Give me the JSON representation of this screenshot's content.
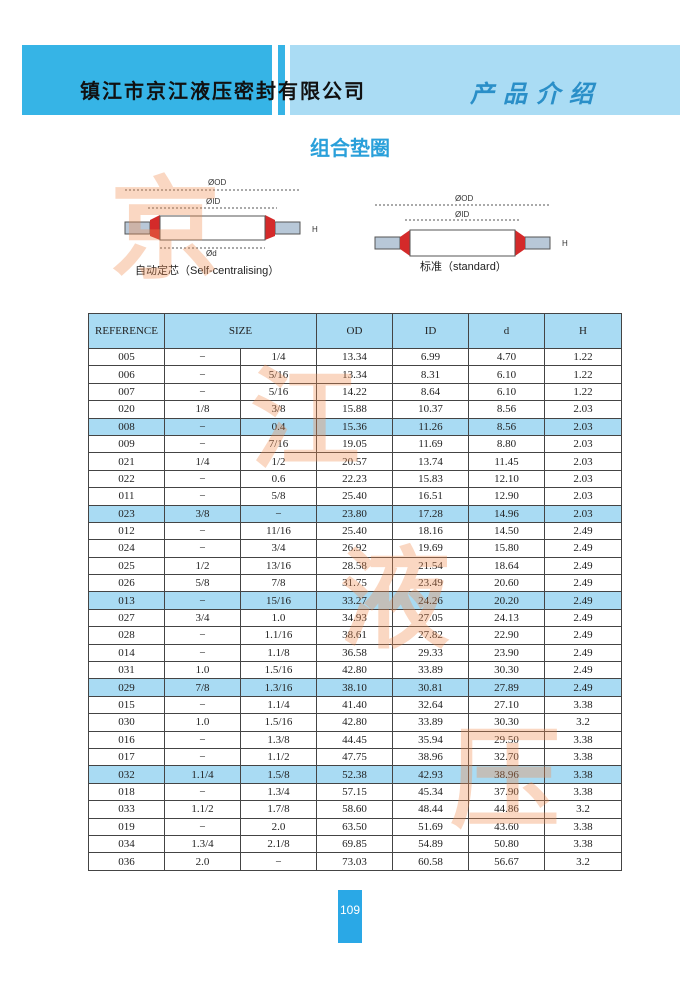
{
  "header": {
    "company": "镇江市京江液压密封有限公司",
    "section": "产品介绍"
  },
  "title": "组合垫圈",
  "watermark": [
    "京",
    "江",
    "液",
    "压"
  ],
  "diagrams": [
    {
      "od_label": "ØOD",
      "id_label": "ØID",
      "d_label": "Ød",
      "h_label": "H",
      "caption": "自动定芯（Self-centralising）"
    },
    {
      "od_label": "ØOD",
      "id_label": "ØID",
      "h_label": "H",
      "caption": "标准（standard）"
    }
  ],
  "table": {
    "header": [
      "REFERENCE",
      "SIZE",
      "OD",
      "ID",
      "d",
      "H"
    ],
    "highlighted_rows": [
      4,
      9,
      14,
      19,
      24
    ],
    "rows": [
      [
        "005",
        "−",
        "1/4",
        "13.34",
        "6.99",
        "4.70",
        "1.22"
      ],
      [
        "006",
        "−",
        "5/16",
        "13.34",
        "8.31",
        "6.10",
        "1.22"
      ],
      [
        "007",
        "−",
        "5/16",
        "14.22",
        "8.64",
        "6.10",
        "1.22"
      ],
      [
        "020",
        "1/8",
        "3/8",
        "15.88",
        "10.37",
        "8.56",
        "2.03"
      ],
      [
        "008",
        "−",
        "0.4",
        "15.36",
        "11.26",
        "8.56",
        "2.03"
      ],
      [
        "009",
        "−",
        "7/16",
        "19.05",
        "11.69",
        "8.80",
        "2.03"
      ],
      [
        "021",
        "1/4",
        "1/2",
        "20.57",
        "13.74",
        "11.45",
        "2.03"
      ],
      [
        "022",
        "−",
        "0.6",
        "22.23",
        "15.83",
        "12.10",
        "2.03"
      ],
      [
        "011",
        "−",
        "5/8",
        "25.40",
        "16.51",
        "12.90",
        "2.03"
      ],
      [
        "023",
        "3/8",
        "−",
        "23.80",
        "17.28",
        "14.96",
        "2.03"
      ],
      [
        "012",
        "−",
        "11/16",
        "25.40",
        "18.16",
        "14.50",
        "2.49"
      ],
      [
        "024",
        "−",
        "3/4",
        "26.92",
        "19.69",
        "15.80",
        "2.49"
      ],
      [
        "025",
        "1/2",
        "13/16",
        "28.58",
        "21.54",
        "18.64",
        "2.49"
      ],
      [
        "026",
        "5/8",
        "7/8",
        "31.75",
        "23.49",
        "20.60",
        "2.49"
      ],
      [
        "013",
        "−",
        "15/16",
        "33.27",
        "24.26",
        "20.20",
        "2.49"
      ],
      [
        "027",
        "3/4",
        "1.0",
        "34.93",
        "27.05",
        "24.13",
        "2.49"
      ],
      [
        "028",
        "−",
        "1.1/16",
        "38.61",
        "27.82",
        "22.90",
        "2.49"
      ],
      [
        "014",
        "−",
        "1.1/8",
        "36.58",
        "29.33",
        "23.90",
        "2.49"
      ],
      [
        "031",
        "1.0",
        "1.5/16",
        "42.80",
        "33.89",
        "30.30",
        "2.49"
      ],
      [
        "029",
        "7/8",
        "1.3/16",
        "38.10",
        "30.81",
        "27.89",
        "2.49"
      ],
      [
        "015",
        "−",
        "1.1/4",
        "41.40",
        "32.64",
        "27.10",
        "3.38"
      ],
      [
        "030",
        "1.0",
        "1.5/16",
        "42.80",
        "33.89",
        "30.30",
        "3.2"
      ],
      [
        "016",
        "−",
        "1.3/8",
        "44.45",
        "35.94",
        "29.50",
        "3.38"
      ],
      [
        "017",
        "−",
        "1.1/2",
        "47.75",
        "38.96",
        "32.70",
        "3.38"
      ],
      [
        "032",
        "1.1/4",
        "1.5/8",
        "52.38",
        "42.93",
        "38.96",
        "3.38"
      ],
      [
        "018",
        "−",
        "1.3/4",
        "57.15",
        "45.34",
        "37.90",
        "3.38"
      ],
      [
        "033",
        "1.1/2",
        "1.7/8",
        "58.60",
        "48.44",
        "44.86",
        "3.2"
      ],
      [
        "019",
        "−",
        "2.0",
        "63.50",
        "51.69",
        "43.60",
        "3.38"
      ],
      [
        "034",
        "1.3/4",
        "2.1/8",
        "69.85",
        "54.89",
        "50.80",
        "3.38"
      ],
      [
        "036",
        "2.0",
        "−",
        "73.03",
        "60.58",
        "56.67",
        "3.2"
      ]
    ]
  },
  "page_number": "109"
}
